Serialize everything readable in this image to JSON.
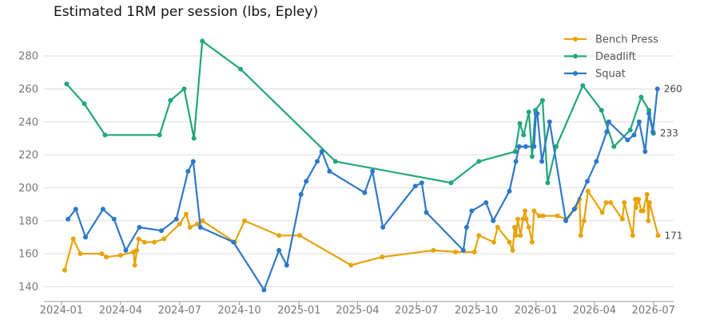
{
  "chart_data": {
    "type": "line",
    "title": "Estimated 1RM per session (lbs, Epley)",
    "xlabel": "",
    "ylabel": "",
    "x_axis": {
      "kind": "date",
      "range": [
        "2023-12-05",
        "2026-08-01"
      ],
      "ticks": [
        "2024-01-01",
        "2024-04-01",
        "2024-07-01",
        "2024-10-01",
        "2025-01-01",
        "2025-04-01",
        "2025-07-01",
        "2025-10-01",
        "2026-01-01",
        "2026-04-01",
        "2026-07-01"
      ],
      "tick_labels": [
        "2024-01",
        "2024-04",
        "2024-07",
        "2024-10",
        "2025-01",
        "2025-04",
        "2025-07",
        "2025-10",
        "2026-01",
        "2026-04",
        "2026-07"
      ]
    },
    "ylim": [
      131,
      297
    ],
    "y_ticks": [
      140,
      160,
      180,
      200,
      220,
      240,
      260,
      280
    ],
    "grid": "horizontal",
    "legend_position": "top-right",
    "series": [
      {
        "name": "Bench Press",
        "color": "#e8a30c",
        "end_label": "171",
        "points": [
          [
            "2024-01-06",
            150
          ],
          [
            "2024-01-19",
            169
          ],
          [
            "2024-01-30",
            160
          ],
          [
            "2024-03-03",
            160
          ],
          [
            "2024-03-10",
            158
          ],
          [
            "2024-04-01",
            159
          ],
          [
            "2024-04-21",
            161
          ],
          [
            "2024-04-23",
            153
          ],
          [
            "2024-04-26",
            162
          ],
          [
            "2024-04-29",
            169
          ],
          [
            "2024-05-08",
            167
          ],
          [
            "2024-05-23",
            167
          ],
          [
            "2024-06-07",
            169
          ],
          [
            "2024-07-01",
            178
          ],
          [
            "2024-07-11",
            184
          ],
          [
            "2024-07-17",
            176
          ],
          [
            "2024-07-28",
            178
          ],
          [
            "2024-08-05",
            180
          ],
          [
            "2024-09-24",
            167
          ],
          [
            "2024-10-09",
            180
          ],
          [
            "2024-12-01",
            171
          ],
          [
            "2025-01-02",
            171
          ],
          [
            "2025-03-22",
            153
          ],
          [
            "2025-05-09",
            158
          ],
          [
            "2025-07-27",
            162
          ],
          [
            "2025-08-30",
            161
          ],
          [
            "2025-09-28",
            161
          ],
          [
            "2025-10-05",
            171
          ],
          [
            "2025-10-28",
            167
          ],
          [
            "2025-11-03",
            176
          ],
          [
            "2025-11-21",
            167
          ],
          [
            "2025-11-26",
            162
          ],
          [
            "2025-11-29",
            176
          ],
          [
            "2025-12-01",
            171
          ],
          [
            "2025-12-04",
            181
          ],
          [
            "2025-12-08",
            171
          ],
          [
            "2025-12-12",
            181
          ],
          [
            "2025-12-15",
            186
          ],
          [
            "2025-12-17",
            181
          ],
          [
            "2025-12-21",
            176
          ],
          [
            "2025-12-26",
            167
          ],
          [
            "2025-12-29",
            186
          ],
          [
            "2026-01-06",
            183
          ],
          [
            "2026-01-12",
            183
          ],
          [
            "2026-02-03",
            183
          ],
          [
            "2026-02-16",
            181
          ],
          [
            "2026-03-03",
            188
          ],
          [
            "2026-03-09",
            193
          ],
          [
            "2026-03-11",
            171
          ],
          [
            "2026-03-16",
            180
          ],
          [
            "2026-03-22",
            198
          ],
          [
            "2026-04-13",
            185
          ],
          [
            "2026-04-19",
            191
          ],
          [
            "2026-04-26",
            191
          ],
          [
            "2026-05-14",
            181
          ],
          [
            "2026-05-17",
            191
          ],
          [
            "2026-05-30",
            171
          ],
          [
            "2026-06-03",
            193
          ],
          [
            "2026-06-04",
            188
          ],
          [
            "2026-06-08",
            193
          ],
          [
            "2026-06-12",
            186
          ],
          [
            "2026-06-15",
            186
          ],
          [
            "2026-06-21",
            196
          ],
          [
            "2026-06-23",
            180
          ],
          [
            "2026-06-25",
            191
          ],
          [
            "2026-07-08",
            171
          ]
        ]
      },
      {
        "name": "Deadlift",
        "color": "#22a67a",
        "end_label": "233",
        "points": [
          [
            "2024-01-09",
            263
          ],
          [
            "2024-02-05",
            251
          ],
          [
            "2024-03-08",
            232
          ],
          [
            "2024-05-31",
            232
          ],
          [
            "2024-06-17",
            253
          ],
          [
            "2024-07-08",
            260
          ],
          [
            "2024-07-23",
            230
          ],
          [
            "2024-08-05",
            289
          ],
          [
            "2024-10-03",
            272
          ],
          [
            "2025-02-26",
            216
          ],
          [
            "2025-08-23",
            203
          ],
          [
            "2025-10-05",
            216
          ],
          [
            "2025-11-30",
            222
          ],
          [
            "2025-12-07",
            239
          ],
          [
            "2025-12-13",
            232
          ],
          [
            "2025-12-21",
            246
          ],
          [
            "2025-12-26",
            219
          ],
          [
            "2025-12-31",
            247
          ],
          [
            "2026-01-11",
            253
          ],
          [
            "2026-01-19",
            203
          ],
          [
            "2026-02-01",
            225
          ],
          [
            "2026-03-14",
            262
          ],
          [
            "2026-04-12",
            247
          ],
          [
            "2026-05-01",
            225
          ],
          [
            "2026-05-26",
            235
          ],
          [
            "2026-06-12",
            255
          ],
          [
            "2026-06-24",
            247
          ],
          [
            "2026-07-01",
            233
          ]
        ]
      },
      {
        "name": "Squat",
        "color": "#2e78c9",
        "end_label": "260",
        "points": [
          [
            "2024-01-11",
            181
          ],
          [
            "2024-01-23",
            187
          ],
          [
            "2024-02-07",
            170
          ],
          [
            "2024-03-05",
            187
          ],
          [
            "2024-03-22",
            181
          ],
          [
            "2024-04-09",
            162
          ],
          [
            "2024-04-30",
            176
          ],
          [
            "2024-06-03",
            174
          ],
          [
            "2024-06-26",
            181
          ],
          [
            "2024-07-14",
            210
          ],
          [
            "2024-07-22",
            216
          ],
          [
            "2024-08-02",
            176
          ],
          [
            "2024-09-22",
            167
          ],
          [
            "2024-11-08",
            138
          ],
          [
            "2024-12-01",
            162
          ],
          [
            "2024-12-13",
            153
          ],
          [
            "2025-01-04",
            196
          ],
          [
            "2025-01-12",
            204
          ],
          [
            "2025-01-29",
            216
          ],
          [
            "2025-02-05",
            222
          ],
          [
            "2025-02-17",
            210
          ],
          [
            "2025-04-12",
            197
          ],
          [
            "2025-04-24",
            210
          ],
          [
            "2025-05-10",
            176
          ],
          [
            "2025-06-29",
            201
          ],
          [
            "2025-07-09",
            203
          ],
          [
            "2025-07-16",
            185
          ],
          [
            "2025-09-11",
            162
          ],
          [
            "2025-09-16",
            176
          ],
          [
            "2025-09-24",
            186
          ],
          [
            "2025-10-16",
            191
          ],
          [
            "2025-10-27",
            180
          ],
          [
            "2025-11-21",
            198
          ],
          [
            "2025-12-01",
            216
          ],
          [
            "2025-12-06",
            225
          ],
          [
            "2025-12-16",
            225
          ],
          [
            "2025-12-29",
            225
          ],
          [
            "2026-01-01",
            245
          ],
          [
            "2026-01-03",
            245
          ],
          [
            "2026-01-10",
            216
          ],
          [
            "2026-01-22",
            240
          ],
          [
            "2026-02-16",
            180
          ],
          [
            "2026-03-01",
            187
          ],
          [
            "2026-03-21",
            204
          ],
          [
            "2026-04-04",
            216
          ],
          [
            "2026-04-20",
            234
          ],
          [
            "2026-04-23",
            240
          ],
          [
            "2026-05-22",
            229
          ],
          [
            "2026-06-01",
            232
          ],
          [
            "2026-06-09",
            240
          ],
          [
            "2026-06-18",
            222
          ],
          [
            "2026-06-24",
            245
          ],
          [
            "2026-06-30",
            234
          ],
          [
            "2026-07-07",
            260
          ]
        ]
      }
    ]
  }
}
